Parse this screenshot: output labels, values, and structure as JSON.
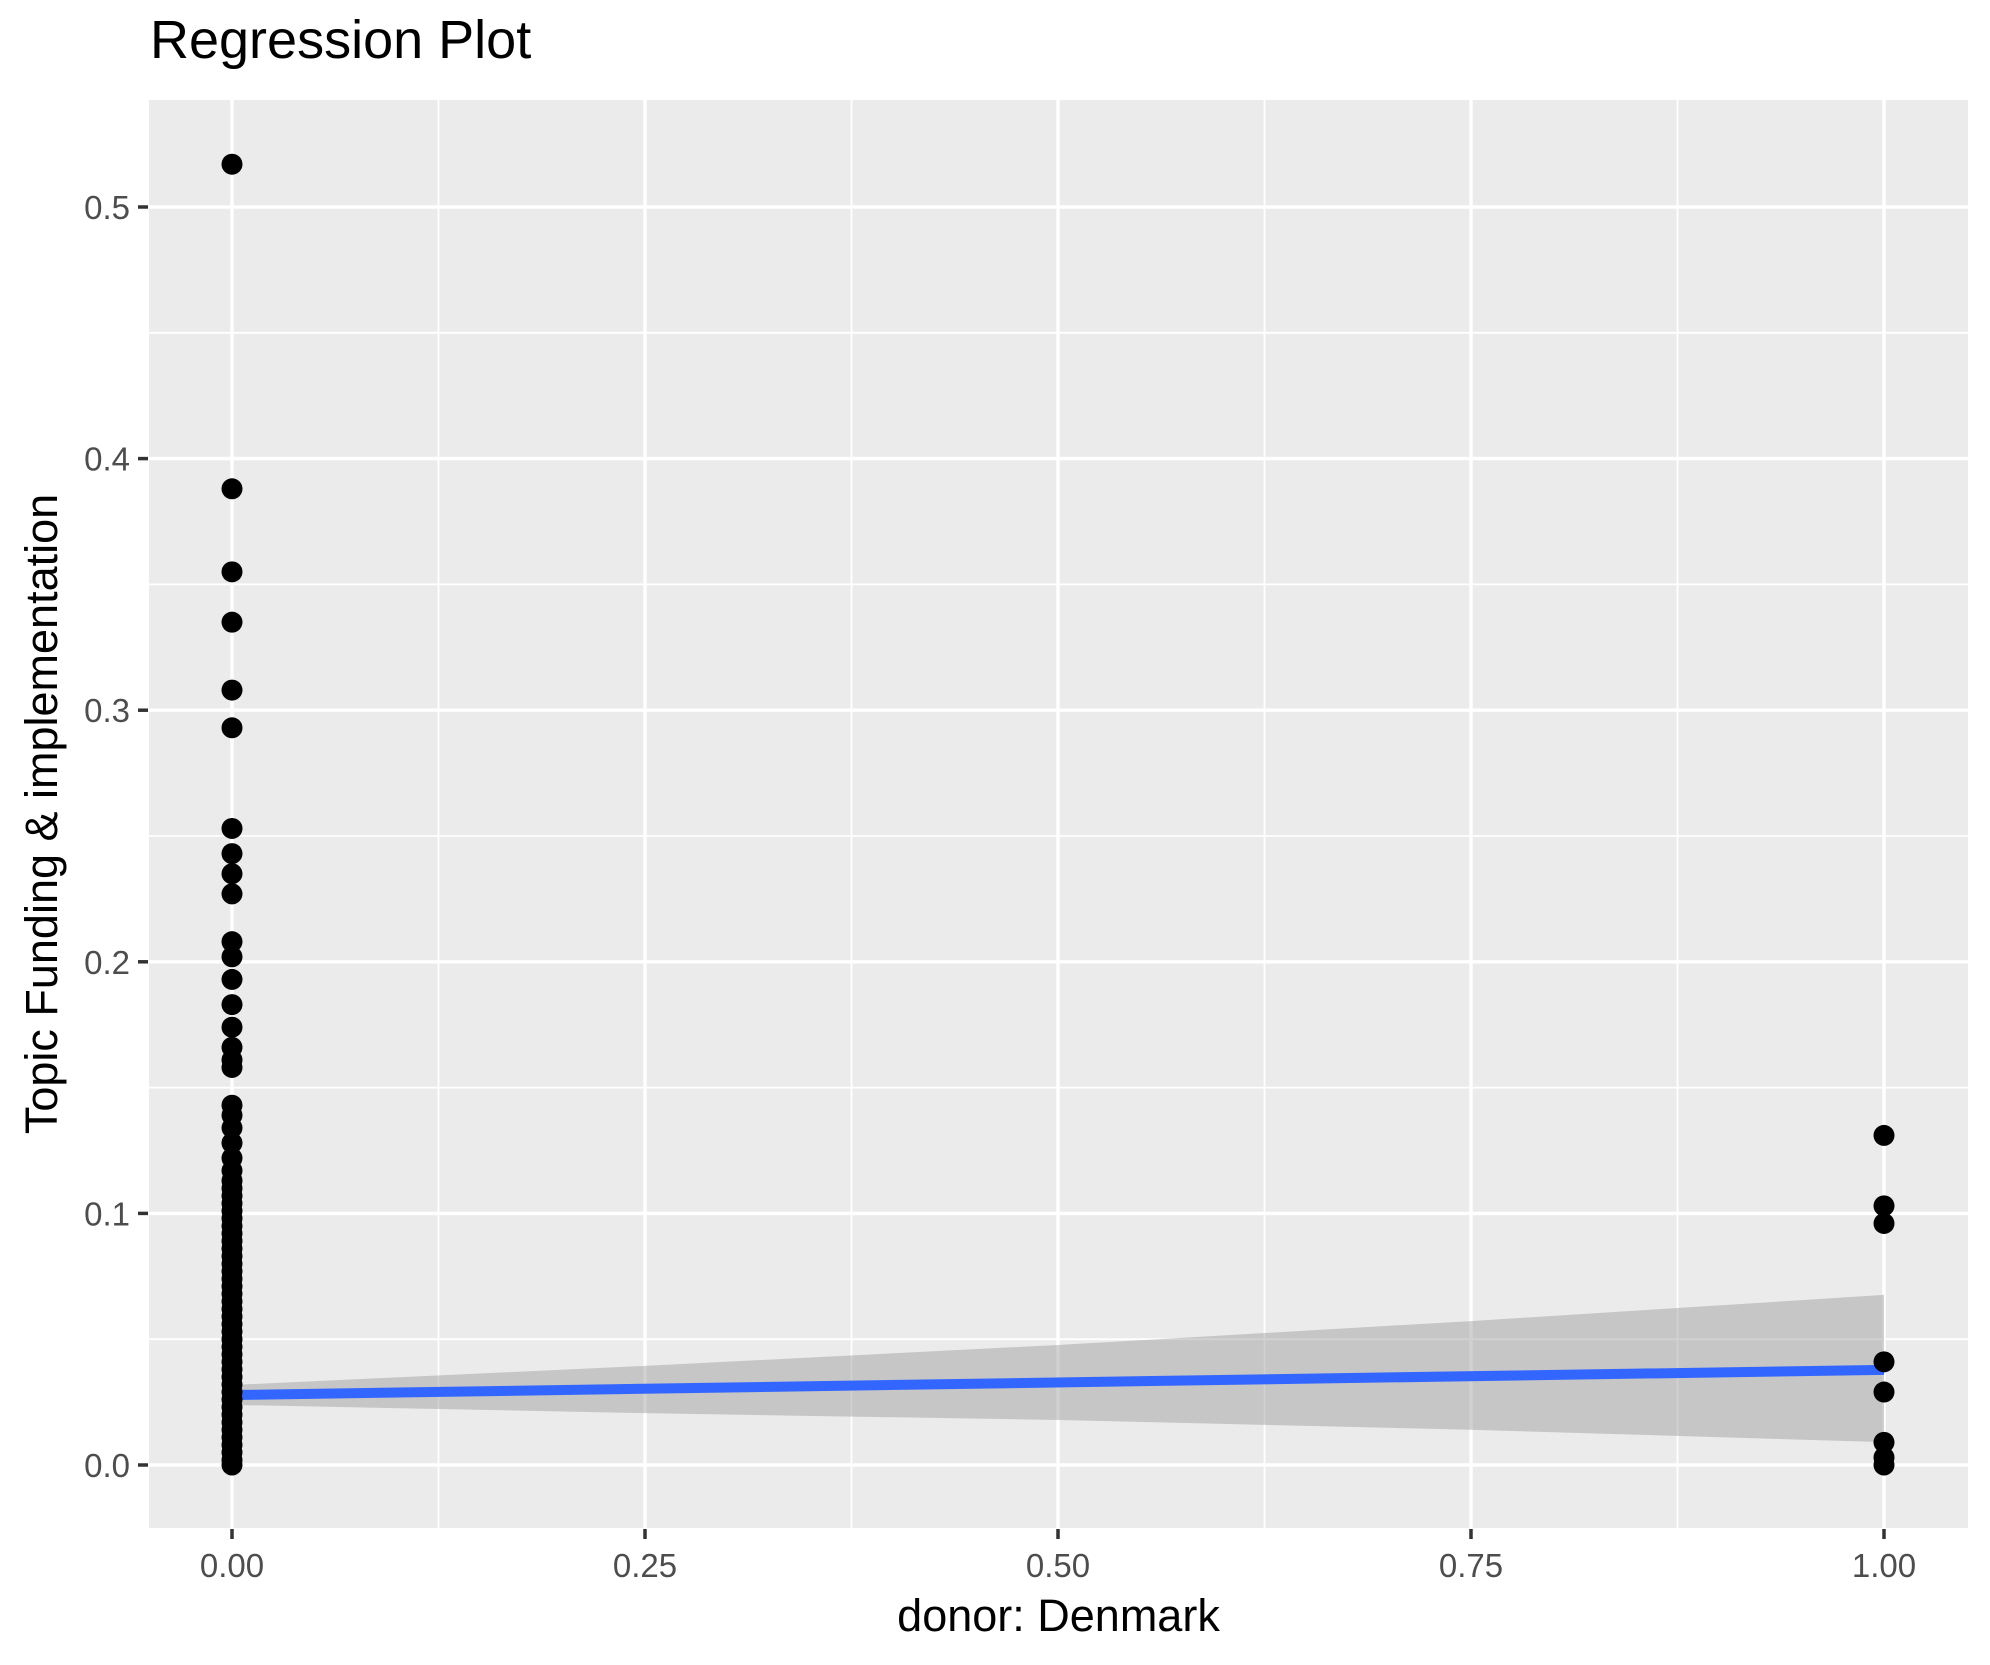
{
  "chart_data": {
    "type": "scatter",
    "title": "Regression Plot",
    "xlabel": "donor: Denmark",
    "ylabel": "Topic Funding & implementation",
    "legend_position": "none",
    "grid": {
      "style": "white major and minor gridlines on gray panel",
      "panel_bg": "#EBEBEB"
    },
    "x_axis": {
      "tick_labels": [
        "0.00",
        "0.25",
        "0.50",
        "0.75",
        "1.00"
      ],
      "tick_values": [
        0,
        0.25,
        0.5,
        0.75,
        1.0
      ],
      "range_shown": [
        -0.05,
        1.05
      ]
    },
    "y_axis": {
      "tick_labels": [
        "0.0",
        "0.1",
        "0.2",
        "0.3",
        "0.4",
        "0.5"
      ],
      "tick_values": [
        0,
        0.1,
        0.2,
        0.3,
        0.4,
        0.5
      ],
      "range_shown": [
        -0.025,
        0.5425
      ]
    },
    "points_at_x0": [
      0.517,
      0.388,
      0.355,
      0.335,
      0.308,
      0.293,
      0.253,
      0.243,
      0.235,
      0.227,
      0.208,
      0.202,
      0.193,
      0.183,
      0.174,
      0.166,
      0.161,
      0.158,
      0.143,
      0.139,
      0.134,
      0.128,
      0.122,
      0.117,
      0.113,
      0.11,
      0.107,
      0.104,
      0.101,
      0.098,
      0.095,
      0.092,
      0.089,
      0.086,
      0.083,
      0.08,
      0.077,
      0.074,
      0.071,
      0.068,
      0.065,
      0.062,
      0.059,
      0.056,
      0.053,
      0.05,
      0.047,
      0.044,
      0.041,
      0.038,
      0.035,
      0.032,
      0.029,
      0.026,
      0.023,
      0.02,
      0.017,
      0.014,
      0.011,
      0.008,
      0.005,
      0.002,
      0.0
    ],
    "points_at_x1": [
      0.131,
      0.103,
      0.096,
      0.041,
      0.029,
      0.009,
      0.003,
      0.0
    ],
    "regression_line": {
      "x": [
        0,
        1
      ],
      "y": [
        0.0278,
        0.0378
      ]
    },
    "confidence_band": {
      "x": [
        0,
        0.25,
        0.5,
        0.75,
        1.0
      ],
      "upper": [
        0.0318,
        0.0394,
        0.0477,
        0.0572,
        0.0676
      ],
      "lower": [
        0.0239,
        0.0206,
        0.0179,
        0.014,
        0.0091
      ]
    },
    "colors": {
      "point": "#000000",
      "line": "#3366FF",
      "band": "rgba(153,153,153,0.45)",
      "panel_bg": "#EBEBEB",
      "gridline": "#FFFFFF",
      "tick_mark": "#333333",
      "tick_label": "#4D4D4D",
      "title_text": "#000000"
    }
  }
}
